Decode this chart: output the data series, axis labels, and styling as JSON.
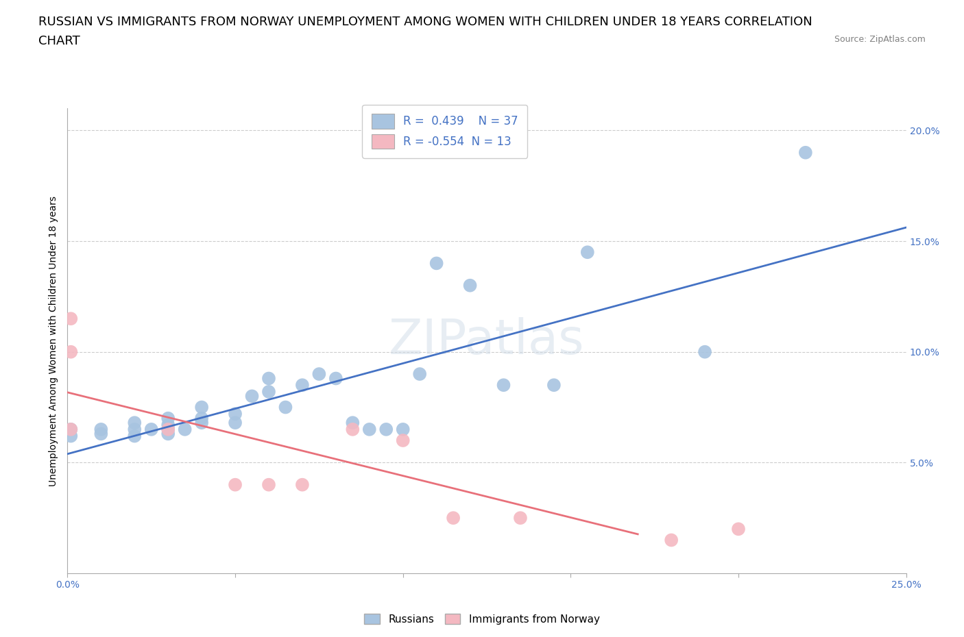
{
  "title_line1": "RUSSIAN VS IMMIGRANTS FROM NORWAY UNEMPLOYMENT AMONG WOMEN WITH CHILDREN UNDER 18 YEARS CORRELATION",
  "title_line2": "CHART",
  "source": "Source: ZipAtlas.com",
  "ylabel": "Unemployment Among Women with Children Under 18 years",
  "xlim": [
    0.0,
    0.25
  ],
  "ylim": [
    0.0,
    0.21
  ],
  "xticks": [
    0.0,
    0.05,
    0.1,
    0.15,
    0.2,
    0.25
  ],
  "xticklabels": [
    "0.0%",
    "",
    "",
    "",
    "",
    "25.0%"
  ],
  "yticks": [
    0.0,
    0.05,
    0.1,
    0.15,
    0.2
  ],
  "yticklabels": [
    "",
    "5.0%",
    "10.0%",
    "15.0%",
    "20.0%"
  ],
  "russian_R": 0.439,
  "russian_N": 37,
  "norway_R": -0.554,
  "norway_N": 13,
  "russian_color": "#a8c4e0",
  "norway_color": "#f4b8c1",
  "regression_russian_color": "#4472c4",
  "regression_norway_color": "#e8707a",
  "watermark": "ZIPatlas",
  "russians_x": [
    0.001,
    0.001,
    0.01,
    0.01,
    0.02,
    0.02,
    0.02,
    0.025,
    0.03,
    0.03,
    0.03,
    0.03,
    0.035,
    0.04,
    0.04,
    0.04,
    0.05,
    0.05,
    0.055,
    0.06,
    0.06,
    0.065,
    0.07,
    0.075,
    0.08,
    0.085,
    0.09,
    0.095,
    0.1,
    0.105,
    0.11,
    0.12,
    0.13,
    0.145,
    0.155,
    0.19,
    0.22
  ],
  "russians_y": [
    0.065,
    0.062,
    0.063,
    0.065,
    0.062,
    0.065,
    0.068,
    0.065,
    0.063,
    0.065,
    0.067,
    0.07,
    0.065,
    0.068,
    0.07,
    0.075,
    0.072,
    0.068,
    0.08,
    0.082,
    0.088,
    0.075,
    0.085,
    0.09,
    0.088,
    0.068,
    0.065,
    0.065,
    0.065,
    0.09,
    0.14,
    0.13,
    0.085,
    0.085,
    0.145,
    0.1,
    0.19
  ],
  "norway_x": [
    0.001,
    0.001,
    0.001,
    0.03,
    0.05,
    0.06,
    0.07,
    0.085,
    0.1,
    0.115,
    0.135,
    0.18,
    0.2
  ],
  "norway_y": [
    0.115,
    0.1,
    0.065,
    0.065,
    0.04,
    0.04,
    0.04,
    0.065,
    0.06,
    0.025,
    0.025,
    0.015,
    0.02
  ],
  "background_color": "#ffffff",
  "grid_color": "#cccccc",
  "title_fontsize": 13,
  "axis_label_fontsize": 10,
  "tick_fontsize": 10,
  "legend_fontsize": 12
}
